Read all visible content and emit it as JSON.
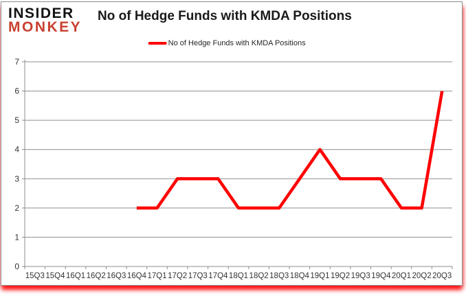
{
  "logo": {
    "line1": "INSIDER",
    "line2": "MONKEY",
    "line1_color": "#121212",
    "line2_color": "#c8402f"
  },
  "header": {
    "title": "No of Hedge Funds with KMDA Positions"
  },
  "legend": {
    "label": "No of Hedge Funds with KMDA Positions",
    "line_color": "#fe0000"
  },
  "chart_data": {
    "type": "line",
    "title": "No of Hedge Funds with KMDA Positions",
    "categories": [
      "15Q3",
      "15Q4",
      "16Q1",
      "16Q2",
      "16Q3",
      "16Q4",
      "17Q1",
      "17Q2",
      "17Q3",
      "17Q4",
      "18Q1",
      "18Q2",
      "18Q3",
      "18Q4",
      "19Q1",
      "19Q2",
      "19Q3",
      "19Q4",
      "20Q1",
      "20Q2",
      "20Q3"
    ],
    "series": [
      {
        "name": "No of Hedge Funds with KMDA Positions",
        "values": [
          null,
          null,
          null,
          null,
          null,
          2,
          2,
          3,
          3,
          3,
          2,
          2,
          2,
          3,
          4,
          3,
          3,
          3,
          2,
          2,
          6
        ],
        "color": "#fe0000"
      }
    ],
    "ylim": [
      0,
      7
    ],
    "yticks": [
      0,
      1,
      2,
      3,
      4,
      5,
      6,
      7
    ],
    "grid": true,
    "legend_position": "top",
    "grid_color": "#8e8e8e",
    "tick_label_color": "#333333"
  }
}
